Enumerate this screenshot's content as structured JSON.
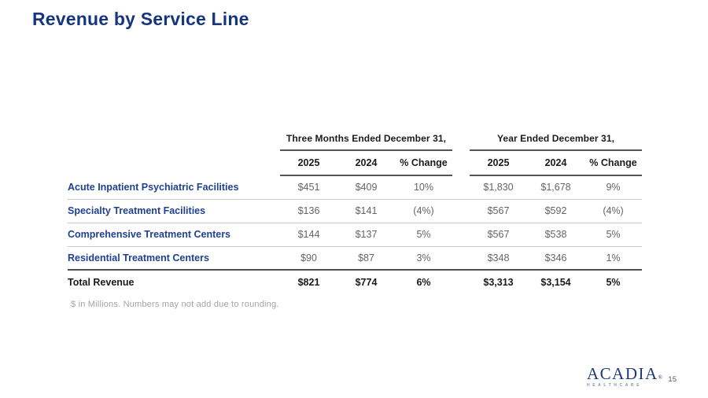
{
  "slide": {
    "title": "Revenue by Service Line",
    "footnote": "$ in Millions. Numbers may not add due to rounding.",
    "page_number": "15"
  },
  "table": {
    "groups": [
      {
        "label": "Three Months Ended December 31,"
      },
      {
        "label": "Year Ended December 31,"
      }
    ],
    "columns": [
      "2025",
      "2024",
      "% Change",
      "2025",
      "2024",
      "% Change"
    ],
    "rows": [
      {
        "label": "Acute Inpatient Psychiatric Facilities",
        "values": [
          "$451",
          "$409",
          "10%",
          "$1,830",
          "$1,678",
          "9%"
        ]
      },
      {
        "label": "Specialty Treatment Facilities",
        "values": [
          "$136",
          "$141",
          "(4%)",
          "$567",
          "$592",
          "(4%)"
        ]
      },
      {
        "label": "Comprehensive Treatment Centers",
        "values": [
          "$144",
          "$137",
          "5%",
          "$567",
          "$538",
          "5%"
        ]
      },
      {
        "label": "Residential Treatment Centers",
        "values": [
          "$90",
          "$87",
          "3%",
          "$348",
          "$346",
          "1%"
        ]
      }
    ],
    "total_row": {
      "label": "Total Revenue",
      "values": [
        "$821",
        "$774",
        "6%",
        "$3,313",
        "$3,154",
        "5%"
      ]
    }
  },
  "footer": {
    "logo_text": "ACADIA",
    "logo_reg": "®",
    "logo_subtext": "HEALTHCARE"
  },
  "colors": {
    "title_navy": "#16357f",
    "row_label_blue": "#1e4191",
    "value_gray": "#636466",
    "header_black": "#1b1b1b",
    "divider_light": "#c9c9c9",
    "divider_dark": "#4f4f4f",
    "footnote_gray": "#a3a3a3",
    "logo_navy": "#1c3a7c"
  }
}
